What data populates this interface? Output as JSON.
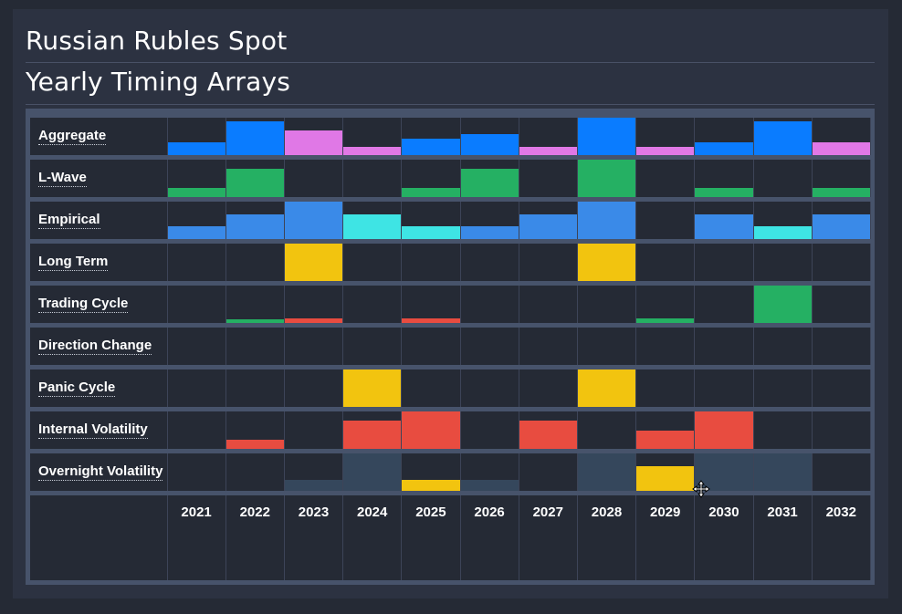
{
  "header": {
    "title": "Russian Rubles Spot",
    "subtitle": "Yearly Timing Arrays"
  },
  "colors": {
    "blue": "#0a7cff",
    "pink": "#e078e6",
    "green": "#25b063",
    "lightblue": "#3a8ae8",
    "cyan": "#3ee4e4",
    "yellow": "#f2c40f",
    "red": "#e84c40",
    "slate": "#35475c"
  },
  "chart_data": {
    "type": "heatmap",
    "title": "Yearly Timing Arrays",
    "categories": [
      "2021",
      "2022",
      "2023",
      "2024",
      "2025",
      "2026",
      "2027",
      "2028",
      "2029",
      "2030",
      "2031",
      "2032"
    ],
    "series": [
      {
        "name": "Aggregate",
        "values": [
          0.33,
          0.9,
          0.67,
          0.22,
          0.45,
          0.56,
          0.22,
          1.0,
          0.22,
          0.33,
          0.9,
          0.33
        ],
        "colors": [
          "blue",
          "blue",
          "pink",
          "pink",
          "blue",
          "blue",
          "pink",
          "blue",
          "pink",
          "blue",
          "blue",
          "pink"
        ]
      },
      {
        "name": "L-Wave",
        "values": [
          0.25,
          0.75,
          0,
          0,
          0.25,
          0.75,
          0,
          1.0,
          0,
          0.25,
          0,
          0.25
        ],
        "colors": [
          "green",
          "green",
          "green",
          "green",
          "green",
          "green",
          "green",
          "green",
          "green",
          "green",
          "green",
          "green"
        ]
      },
      {
        "name": "Empirical",
        "values": [
          0.33,
          0.67,
          1.0,
          0.67,
          0.33,
          0.33,
          0.67,
          1.0,
          0,
          0.67,
          0.33,
          0.67
        ],
        "colors": [
          "lightblue",
          "lightblue",
          "lightblue",
          "cyan",
          "cyan",
          "lightblue",
          "lightblue",
          "lightblue",
          "lightblue",
          "lightblue",
          "cyan",
          "lightblue"
        ]
      },
      {
        "name": "Long Term",
        "values": [
          0,
          0,
          1.0,
          0,
          0,
          0,
          0,
          1.0,
          0,
          0,
          0,
          0
        ],
        "colors": [
          "yellow",
          "yellow",
          "yellow",
          "yellow",
          "yellow",
          "yellow",
          "yellow",
          "yellow",
          "yellow",
          "yellow",
          "yellow",
          "yellow"
        ]
      },
      {
        "name": "Trading Cycle",
        "values": [
          0,
          0.1,
          0.13,
          0,
          0.13,
          0,
          0,
          0,
          0.13,
          0,
          1.0,
          0
        ],
        "colors": [
          "green",
          "green",
          "red",
          "green",
          "red",
          "green",
          "green",
          "green",
          "green",
          "green",
          "green",
          "green"
        ]
      },
      {
        "name": "Direction Change",
        "values": [
          0,
          0,
          0,
          0,
          0,
          0,
          0,
          0,
          0,
          0,
          0,
          0
        ],
        "colors": [
          "green",
          "green",
          "green",
          "green",
          "green",
          "green",
          "green",
          "green",
          "green",
          "green",
          "green",
          "green"
        ]
      },
      {
        "name": "Panic Cycle",
        "values": [
          0,
          0,
          0,
          1.0,
          0,
          0,
          0,
          1.0,
          0,
          0,
          0,
          0
        ],
        "colors": [
          "yellow",
          "yellow",
          "yellow",
          "yellow",
          "yellow",
          "yellow",
          "yellow",
          "yellow",
          "yellow",
          "yellow",
          "yellow",
          "yellow"
        ]
      },
      {
        "name": "Internal Volatility",
        "values": [
          0,
          0.25,
          0,
          0.75,
          1.0,
          0,
          0.75,
          0,
          0.5,
          1.0,
          0,
          0
        ],
        "colors": [
          "red",
          "red",
          "red",
          "red",
          "red",
          "red",
          "red",
          "red",
          "red",
          "red",
          "red",
          "red"
        ]
      },
      {
        "name": "Overnight Volatility",
        "values": [
          0,
          0,
          0.29,
          1.0,
          0.29,
          0.29,
          0,
          1.0,
          0.65,
          1.0,
          1.0,
          0
        ],
        "colors": [
          "slate",
          "slate",
          "slate",
          "slate",
          "yellow",
          "slate",
          "slate",
          "slate",
          "yellow",
          "slate",
          "slate",
          "slate"
        ]
      }
    ],
    "grid": true
  }
}
